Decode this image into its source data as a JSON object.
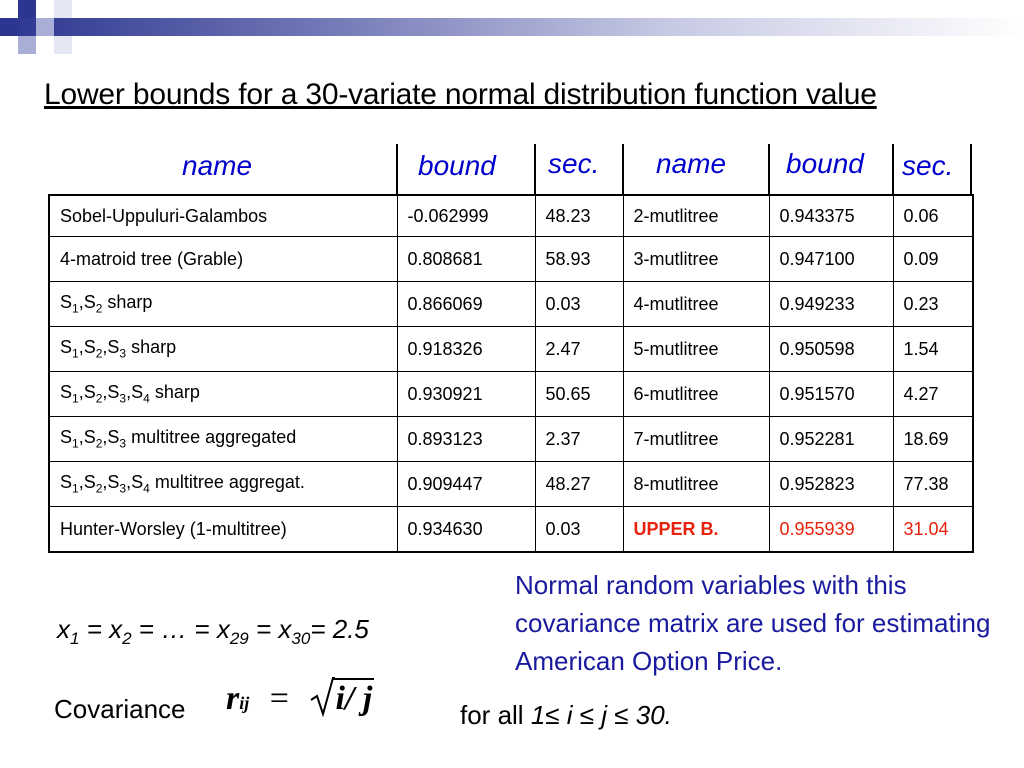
{
  "title": "Lower bounds for a 30-variate normal distribution function value",
  "headers": {
    "left": {
      "name": "name",
      "bound": "bound",
      "sec": "sec."
    },
    "right": {
      "name": "name",
      "bound": "bound",
      "sec": "sec."
    }
  },
  "rows": [
    {
      "name_html": "Sobel-Uppuluri-Galambos",
      "bound": "-0.062999",
      "sec": "48.23",
      "name2": "2-mutlitree",
      "bound2": "0.943375",
      "sec2": "0.06"
    },
    {
      "name_html": "4-matroid tree (Grable)",
      "bound": "0.808681",
      "sec": "58.93",
      "name2": "3-mutlitree",
      "bound2": "0.947100",
      "sec2": "0.09"
    },
    {
      "name_html": "S<sub>1</sub>,S<sub>2</sub> sharp",
      "bound": "0.866069",
      "sec": "0.03",
      "name2": "4-mutlitree",
      "bound2": "0.949233",
      "sec2": "0.23"
    },
    {
      "name_html": "S<sub>1</sub>,S<sub>2</sub>,S<sub>3</sub> sharp",
      "bound": "0.918326",
      "sec": "2.47",
      "name2": "5-mutlitree",
      "bound2": "0.950598",
      "sec2": "1.54"
    },
    {
      "name_html": "S<sub>1</sub>,S<sub>2</sub>,S<sub>3</sub>,S<sub>4</sub> sharp",
      "bound": "0.930921",
      "sec": "50.65",
      "name2": "6-mutlitree",
      "bound2": "0.951570",
      "sec2": "4.27"
    },
    {
      "name_html": "S<sub>1</sub>,S<sub>2</sub>,S<sub>3</sub> multitree aggregated",
      "bound": "0.893123",
      "sec": "2.37",
      "name2": "7-mutlitree",
      "bound2": "0.952281",
      "sec2": "18.69"
    },
    {
      "name_html": "S<sub>1</sub>,S<sub>2</sub>,S<sub>3</sub>,S<sub>4</sub> multitree aggregat.",
      "bound": "0.909447",
      "sec": "48.27",
      "name2": "8-mutlitree",
      "bound2": "0.952823",
      "sec2": "77.38"
    },
    {
      "name_html": "Hunter-Worsley (1-multitree)",
      "bound": "0.934630",
      "sec": "0.03",
      "name2": "UPPER B.",
      "bound2": "0.955939",
      "sec2": "31.04",
      "highlight": true
    }
  ],
  "note": "Normal random variables with this covariance matrix are used for estimating American Option Price.",
  "equation_html": "x<sub>1</sub> = x<sub>2</sub> = … = x<sub>29</sub> = x<sub>30</sub>= 2.5",
  "covariance": {
    "label": "Covariance",
    "formula_r": "r",
    "formula_sub": "ij",
    "formula_eq": "=",
    "formula_body": "i/ j",
    "forall_text": "for all",
    "forall_cond": "1≤ i ≤ j ≤ 30."
  },
  "colors": {
    "header_blue": "#0000cc",
    "note_blue": "#1a1a9e",
    "highlight_red": "#e8210c",
    "decor_navy": "#2c3590",
    "decor_light": "#a9aed6"
  }
}
